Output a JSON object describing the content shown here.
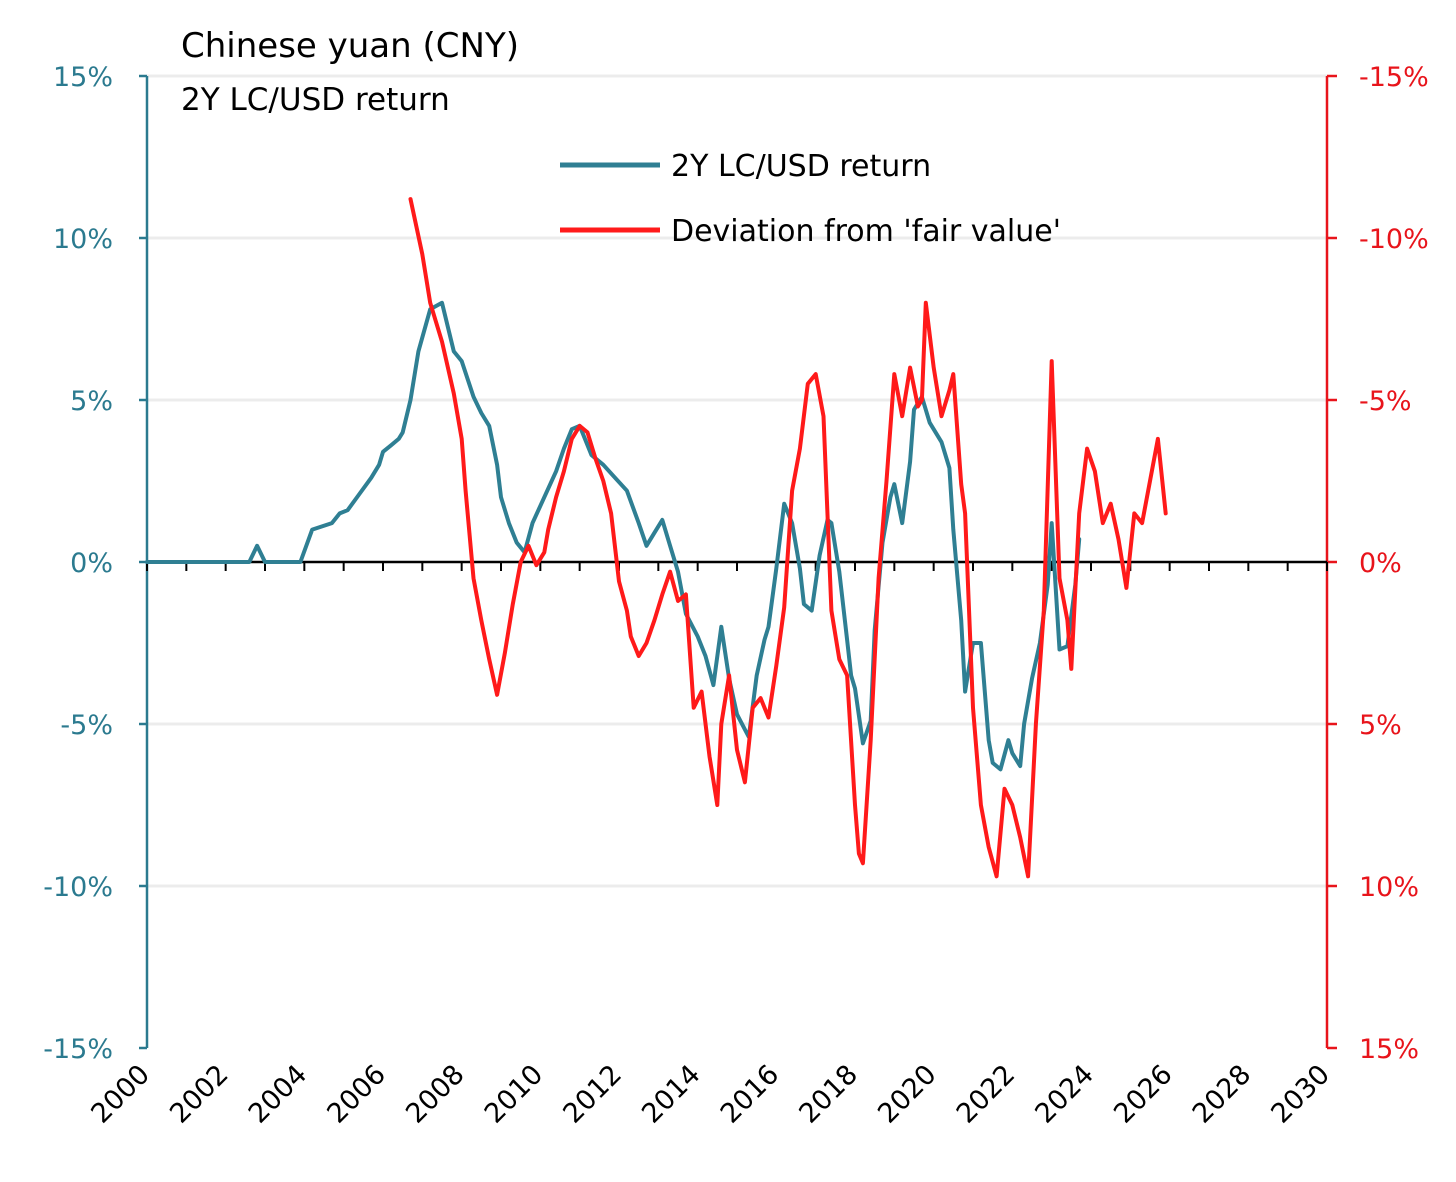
{
  "colors": {
    "left_axis": "#2b7a8f",
    "right_axis": "#e8141b",
    "series_return": "#2f7f93",
    "series_deviation": "#ff1a1a",
    "grid": "#ececec",
    "zero_line": "#000000"
  },
  "chart_data": {
    "type": "line",
    "title": "Chinese yuan (CNY)",
    "subtitle": "2Y LC/USD return",
    "xlim": [
      2000,
      2030
    ],
    "x_ticks": [
      2000,
      2002,
      2004,
      2006,
      2008,
      2010,
      2012,
      2014,
      2016,
      2018,
      2020,
      2022,
      2024,
      2026,
      2028,
      2030
    ],
    "x_tick_labels": [
      "2000",
      "2002",
      "2004",
      "2006",
      "2008",
      "2010",
      "2012",
      "2014",
      "2016",
      "2018",
      "2020",
      "2022",
      "2024",
      "2026",
      "2028",
      "2030"
    ],
    "y_left": {
      "lim": [
        -15,
        15
      ],
      "ticks": [
        15,
        10,
        5,
        0,
        -5,
        -10,
        -15
      ],
      "tick_labels": [
        "15%",
        "10%",
        "5%",
        "0%",
        "-5%",
        "-10%",
        "-15%"
      ]
    },
    "y_right": {
      "lim": [
        -15,
        15
      ],
      "inverted": true,
      "ticks": [
        -15,
        -10,
        -5,
        0,
        5,
        10,
        15
      ],
      "tick_labels": [
        "-15%",
        "-10%",
        "-5%",
        "0%",
        "5%",
        "10%",
        "15%"
      ]
    },
    "legend": {
      "position": "top-center",
      "entries": [
        "2Y LC/USD return",
        "Deviation from 'fair value'"
      ]
    },
    "series": [
      {
        "name": "2Y LC/USD return",
        "axis": "left",
        "x": [
          2000.0,
          2001.0,
          2002.0,
          2002.6,
          2002.8,
          2003.0,
          2003.5,
          2003.9,
          2004.2,
          2004.7,
          2004.9,
          2005.1,
          2005.4,
          2005.7,
          2005.9,
          2006.0,
          2006.2,
          2006.4,
          2006.5,
          2006.7,
          2006.9,
          2007.2,
          2007.5,
          2007.8,
          2008.0,
          2008.3,
          2008.5,
          2008.7,
          2008.9,
          2009.0,
          2009.2,
          2009.4,
          2009.6,
          2009.8,
          2010.1,
          2010.4,
          2010.6,
          2010.8,
          2011.0,
          2011.3,
          2011.6,
          2011.9,
          2012.2,
          2012.5,
          2012.7,
          2012.9,
          2013.1,
          2013.3,
          2013.5,
          2013.7,
          2014.0,
          2014.2,
          2014.4,
          2014.6,
          2014.8,
          2015.0,
          2015.3,
          2015.5,
          2015.7,
          2015.8,
          2016.0,
          2016.2,
          2016.4,
          2016.6,
          2016.7,
          2016.9,
          2017.1,
          2017.3,
          2017.4,
          2017.6,
          2017.8,
          2017.9,
          2018.0,
          2018.2,
          2018.4,
          2018.5,
          2018.7,
          2018.9,
          2019.0,
          2019.2,
          2019.4,
          2019.5,
          2019.7,
          2019.9,
          2020.2,
          2020.4,
          2020.5,
          2020.7,
          2020.8,
          2021.0,
          2021.2,
          2021.4,
          2021.5,
          2021.7,
          2021.9,
          2022.0,
          2022.2,
          2022.3,
          2022.5,
          2022.7,
          2022.9,
          2023.0,
          2023.2,
          2023.4,
          2023.6,
          2023.7
        ],
        "values": [
          0.0,
          0.0,
          0.0,
          0.0,
          0.5,
          0.0,
          0.0,
          0.0,
          1.0,
          1.2,
          1.5,
          1.6,
          2.1,
          2.6,
          3.0,
          3.4,
          3.6,
          3.8,
          4.0,
          5.0,
          6.5,
          7.8,
          8.0,
          6.5,
          6.2,
          5.1,
          4.6,
          4.2,
          3.0,
          2.0,
          1.2,
          0.6,
          0.3,
          1.2,
          2.0,
          2.8,
          3.5,
          4.1,
          4.2,
          3.3,
          3.0,
          2.6,
          2.2,
          1.2,
          0.5,
          0.9,
          1.3,
          0.5,
          -0.3,
          -1.6,
          -2.3,
          -2.9,
          -3.8,
          -2.0,
          -3.6,
          -4.7,
          -5.4,
          -3.5,
          -2.4,
          -2.0,
          -0.2,
          1.8,
          1.2,
          -0.2,
          -1.3,
          -1.5,
          0.2,
          1.3,
          1.2,
          -0.3,
          -2.4,
          -3.5,
          -3.9,
          -5.6,
          -4.9,
          -2.1,
          0.6,
          2.0,
          2.4,
          1.2,
          3.1,
          4.7,
          5.1,
          4.3,
          3.7,
          2.9,
          1.0,
          -1.8,
          -4.0,
          -2.5,
          -2.5,
          -5.5,
          -6.2,
          -6.4,
          -5.5,
          -5.9,
          -6.3,
          -5.0,
          -3.6,
          -2.5,
          -0.7,
          1.2,
          -2.7,
          -2.6,
          -0.7,
          0.7
        ]
      },
      {
        "name": "Deviation from 'fair value'",
        "axis": "right",
        "x": [
          2006.7,
          2007.0,
          2007.2,
          2007.5,
          2007.8,
          2008.0,
          2008.1,
          2008.3,
          2008.5,
          2008.7,
          2008.9,
          2009.1,
          2009.3,
          2009.5,
          2009.7,
          2009.9,
          2010.1,
          2010.2,
          2010.4,
          2010.6,
          2010.8,
          2011.0,
          2011.2,
          2011.4,
          2011.6,
          2011.8,
          2012.0,
          2012.2,
          2012.3,
          2012.5,
          2012.7,
          2012.9,
          2013.1,
          2013.3,
          2013.5,
          2013.7,
          2013.9,
          2014.1,
          2014.3,
          2014.5,
          2014.6,
          2014.8,
          2015.0,
          2015.2,
          2015.4,
          2015.6,
          2015.8,
          2016.0,
          2016.2,
          2016.4,
          2016.6,
          2016.8,
          2017.0,
          2017.2,
          2017.4,
          2017.6,
          2017.8,
          2018.0,
          2018.1,
          2018.2,
          2018.4,
          2018.6,
          2018.8,
          2019.0,
          2019.2,
          2019.4,
          2019.6,
          2019.7,
          2019.8,
          2020.0,
          2020.2,
          2020.4,
          2020.5,
          2020.7,
          2020.8,
          2021.0,
          2021.2,
          2021.4,
          2021.6,
          2021.8,
          2022.0,
          2022.2,
          2022.4,
          2022.6,
          2022.8,
          2023.0,
          2023.2,
          2023.4,
          2023.5,
          2023.7,
          2023.9,
          2024.1,
          2024.3,
          2024.5,
          2024.7,
          2024.9,
          2025.1,
          2025.3,
          2025.5,
          2025.7,
          2025.9
        ],
        "values": [
          -11.2,
          -9.5,
          -8.0,
          -6.8,
          -5.2,
          -3.8,
          -2.2,
          0.5,
          1.8,
          3.0,
          4.1,
          2.8,
          1.3,
          0.0,
          -0.5,
          0.1,
          -0.3,
          -1.0,
          -2.0,
          -2.8,
          -3.8,
          -4.2,
          -4.0,
          -3.2,
          -2.5,
          -1.5,
          0.6,
          1.5,
          2.3,
          2.9,
          2.5,
          1.8,
          1.0,
          0.3,
          1.2,
          1.0,
          4.5,
          4.0,
          6.0,
          7.5,
          5.0,
          3.5,
          5.8,
          6.8,
          4.5,
          4.2,
          4.8,
          3.2,
          1.4,
          -2.2,
          -3.5,
          -5.5,
          -5.8,
          -4.5,
          1.5,
          3.0,
          3.5,
          7.5,
          9.0,
          9.3,
          5.5,
          0.5,
          -2.5,
          -5.8,
          -4.5,
          -6.0,
          -4.8,
          -5.0,
          -8.0,
          -6.0,
          -4.5,
          -5.3,
          -5.8,
          -2.4,
          -1.5,
          4.5,
          7.5,
          8.8,
          9.7,
          7.0,
          7.5,
          8.5,
          9.7,
          5.0,
          1.5,
          -6.2,
          0.5,
          1.8,
          3.3,
          -1.5,
          -3.5,
          -2.8,
          -1.2,
          -1.8,
          -0.7,
          0.8,
          -1.5,
          -1.2,
          -2.5,
          -3.8,
          -1.5
        ]
      }
    ]
  }
}
